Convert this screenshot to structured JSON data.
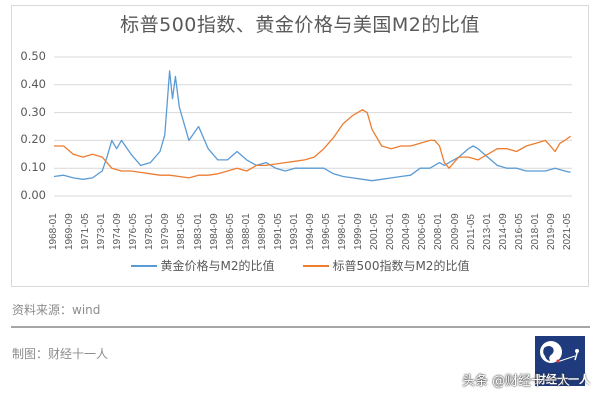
{
  "chart_data": {
    "type": "line",
    "title": "标普500指数、黄金价格与美国M2的比值",
    "xlabel": "",
    "ylabel": "",
    "ylim": [
      0,
      0.5
    ],
    "yticks": [
      "0.50",
      "0.40",
      "0.30",
      "0.20",
      "0.10",
      "0.00"
    ],
    "grid": true,
    "legend_position": "bottom",
    "x_tick_labels": [
      "1968-01",
      "1969-09",
      "1971-05",
      "1973-01",
      "1974-09",
      "1976-05",
      "1978-01",
      "1979-09",
      "1981-05",
      "1983-01",
      "1984-09",
      "1986-05",
      "1988-01",
      "1989-09",
      "1991-05",
      "1993-01",
      "1994-09",
      "1996-05",
      "1998-01",
      "1999-09",
      "2001-05",
      "2003-01",
      "2004-09",
      "2006-05",
      "2008-01",
      "2009-09",
      "2011-05",
      "2013-01",
      "2014-09",
      "2016-05",
      "2018-01",
      "2019-09",
      "2021-05"
    ],
    "x_range": [
      1968.0,
      2021.75
    ],
    "series": [
      {
        "name": "黄金价格与M2的比值",
        "color": "#5b9bd5",
        "x": [
          1968,
          1969,
          1970,
          1971,
          1972,
          1973,
          1973.5,
          1974,
          1974.5,
          1975,
          1976,
          1977,
          1978,
          1979,
          1979.5,
          1980.0,
          1980.3,
          1980.6,
          1981,
          1982,
          1983,
          1984,
          1985,
          1986,
          1987,
          1988,
          1989,
          1990,
          1991,
          1992,
          1993,
          1994,
          1995,
          1996,
          1997,
          1998,
          1999,
          2000,
          2001,
          2002,
          2003,
          2004,
          2005,
          2006,
          2007,
          2008,
          2008.5,
          2009,
          2010,
          2011,
          2011.5,
          2012,
          2013,
          2014,
          2015,
          2016,
          2017,
          2018,
          2019,
          2020,
          2021,
          2021.6
        ],
        "values": [
          0.07,
          0.075,
          0.065,
          0.06,
          0.065,
          0.09,
          0.14,
          0.2,
          0.17,
          0.2,
          0.15,
          0.11,
          0.12,
          0.16,
          0.22,
          0.45,
          0.35,
          0.43,
          0.32,
          0.2,
          0.25,
          0.17,
          0.13,
          0.13,
          0.16,
          0.13,
          0.11,
          0.12,
          0.1,
          0.09,
          0.1,
          0.1,
          0.1,
          0.1,
          0.08,
          0.07,
          0.065,
          0.06,
          0.055,
          0.06,
          0.065,
          0.07,
          0.075,
          0.1,
          0.1,
          0.12,
          0.11,
          0.12,
          0.14,
          0.17,
          0.18,
          0.17,
          0.14,
          0.11,
          0.1,
          0.1,
          0.09,
          0.09,
          0.09,
          0.1,
          0.09,
          0.085
        ]
      },
      {
        "name": "标普500指数与M2的比值",
        "color": "#ed7d31",
        "x": [
          1968,
          1969,
          1970,
          1971,
          1972,
          1973,
          1974,
          1975,
          1976,
          1977,
          1978,
          1979,
          1980,
          1981,
          1982,
          1983,
          1984,
          1985,
          1986,
          1987,
          1988,
          1989,
          1990,
          1991,
          1992,
          1993,
          1994,
          1995,
          1996,
          1997,
          1998,
          1999,
          2000,
          2000.5,
          2001,
          2002,
          2003,
          2004,
          2005,
          2006,
          2007,
          2007.5,
          2008,
          2008.5,
          2009,
          2009.5,
          2010,
          2011,
          2012,
          2013,
          2014,
          2015,
          2016,
          2017,
          2018,
          2019,
          2020,
          2020.5,
          2021,
          2021.6
        ],
        "values": [
          0.18,
          0.18,
          0.15,
          0.14,
          0.15,
          0.14,
          0.1,
          0.09,
          0.09,
          0.085,
          0.08,
          0.075,
          0.075,
          0.07,
          0.065,
          0.075,
          0.075,
          0.08,
          0.09,
          0.1,
          0.09,
          0.11,
          0.11,
          0.115,
          0.12,
          0.125,
          0.13,
          0.14,
          0.17,
          0.21,
          0.26,
          0.29,
          0.31,
          0.3,
          0.24,
          0.18,
          0.17,
          0.18,
          0.18,
          0.19,
          0.2,
          0.2,
          0.18,
          0.12,
          0.1,
          0.12,
          0.14,
          0.14,
          0.13,
          0.15,
          0.17,
          0.17,
          0.16,
          0.18,
          0.19,
          0.2,
          0.16,
          0.19,
          0.2,
          0.215
        ]
      }
    ]
  },
  "legend": {
    "gold_label": "黄金价格与M2的比值",
    "sp_label": "标普500指数与M2的比值"
  },
  "footer": {
    "source": "资料来源：wind",
    "maker": "制图：财经十一人"
  },
  "logo": {
    "text": "财经十一人",
    "color": "#1f3b7d"
  },
  "watermark": "头条 @财经十一人"
}
